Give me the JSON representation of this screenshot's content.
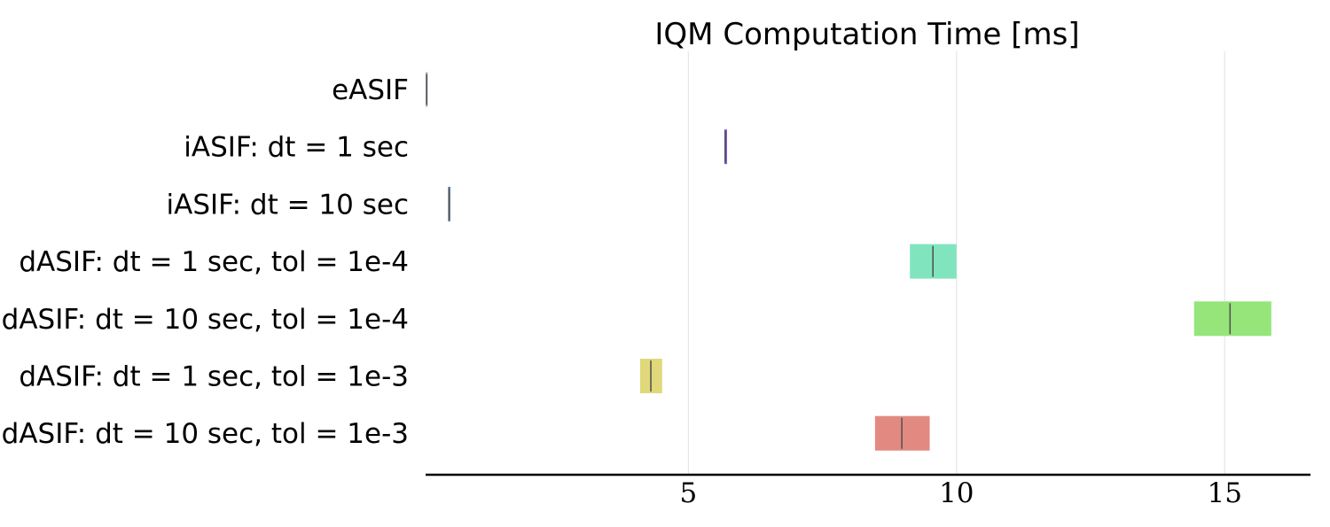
{
  "chart_data": {
    "type": "box",
    "title": "IQM Computation Time [ms]",
    "xlabel": "",
    "ylabel": "",
    "xlim": [
      0.1,
      16.6
    ],
    "xticks": [
      5,
      10,
      15
    ],
    "tick_labels": [
      "5",
      "10",
      "15"
    ],
    "grid": "vertical",
    "legend": "none",
    "categories": [
      "eASIF",
      "iASIF: dt = 1 sec",
      "iASIF: dt = 10 sec",
      "dASIF: dt = 1 sec, tol = 1e-4",
      "dASIF: dt = 10 sec, tol = 1e-4",
      "dASIF: dt = 1 sec, tol = 1e-3",
      "dASIF: dt = 10 sec, tol = 1e-3"
    ],
    "boxes": [
      {
        "q1": 0.1,
        "median": 0.12,
        "q3": 0.14,
        "color": "#b4b4c8"
      },
      {
        "q1": 5.67,
        "median": 5.69,
        "q3": 5.72,
        "color": "#7b52c7"
      },
      {
        "q1": 0.52,
        "median": 0.54,
        "q3": 0.56,
        "color": "#4a6a96"
      },
      {
        "q1": 9.13,
        "median": 9.56,
        "q3": 10.0,
        "color": "#80e5bf"
      },
      {
        "q1": 14.43,
        "median": 15.1,
        "q3": 15.87,
        "color": "#96e57a"
      },
      {
        "q1": 4.1,
        "median": 4.3,
        "q3": 4.51,
        "color": "#e0d87a"
      },
      {
        "q1": 8.48,
        "median": 8.98,
        "q3": 9.5,
        "color": "#e28a82"
      }
    ]
  }
}
